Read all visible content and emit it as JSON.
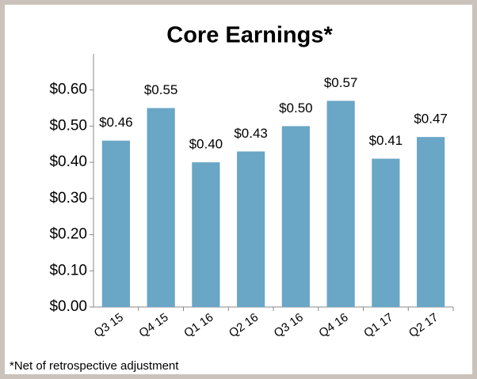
{
  "chart_data": {
    "type": "bar",
    "title": "Core Earnings*",
    "categories": [
      "Q3 15",
      "Q4 15",
      "Q1 16",
      "Q2 16",
      "Q3 16",
      "Q4 16",
      "Q1 17",
      "Q2 17"
    ],
    "values": [
      0.46,
      0.55,
      0.4,
      0.43,
      0.5,
      0.57,
      0.41,
      0.47
    ],
    "value_labels": [
      "$0.46",
      "$0.55",
      "$0.40",
      "$0.43",
      "$0.50",
      "$0.57",
      "$0.41",
      "$0.47"
    ],
    "color": "#6aa6c6",
    "ylim": [
      0,
      0.7
    ],
    "yticks": [
      {
        "value": 0,
        "label": "$0.00"
      },
      {
        "value": 0.1,
        "label": "$0.10"
      },
      {
        "value": 0.2,
        "label": "$0.20"
      },
      {
        "value": 0.3,
        "label": "$0.30"
      },
      {
        "value": 0.4,
        "label": "$0.40"
      },
      {
        "value": 0.5,
        "label": "$0.50"
      },
      {
        "value": 0.6,
        "label": "$0.60"
      }
    ],
    "grid": false,
    "annotation": "*Net of retrospective adjustment"
  }
}
